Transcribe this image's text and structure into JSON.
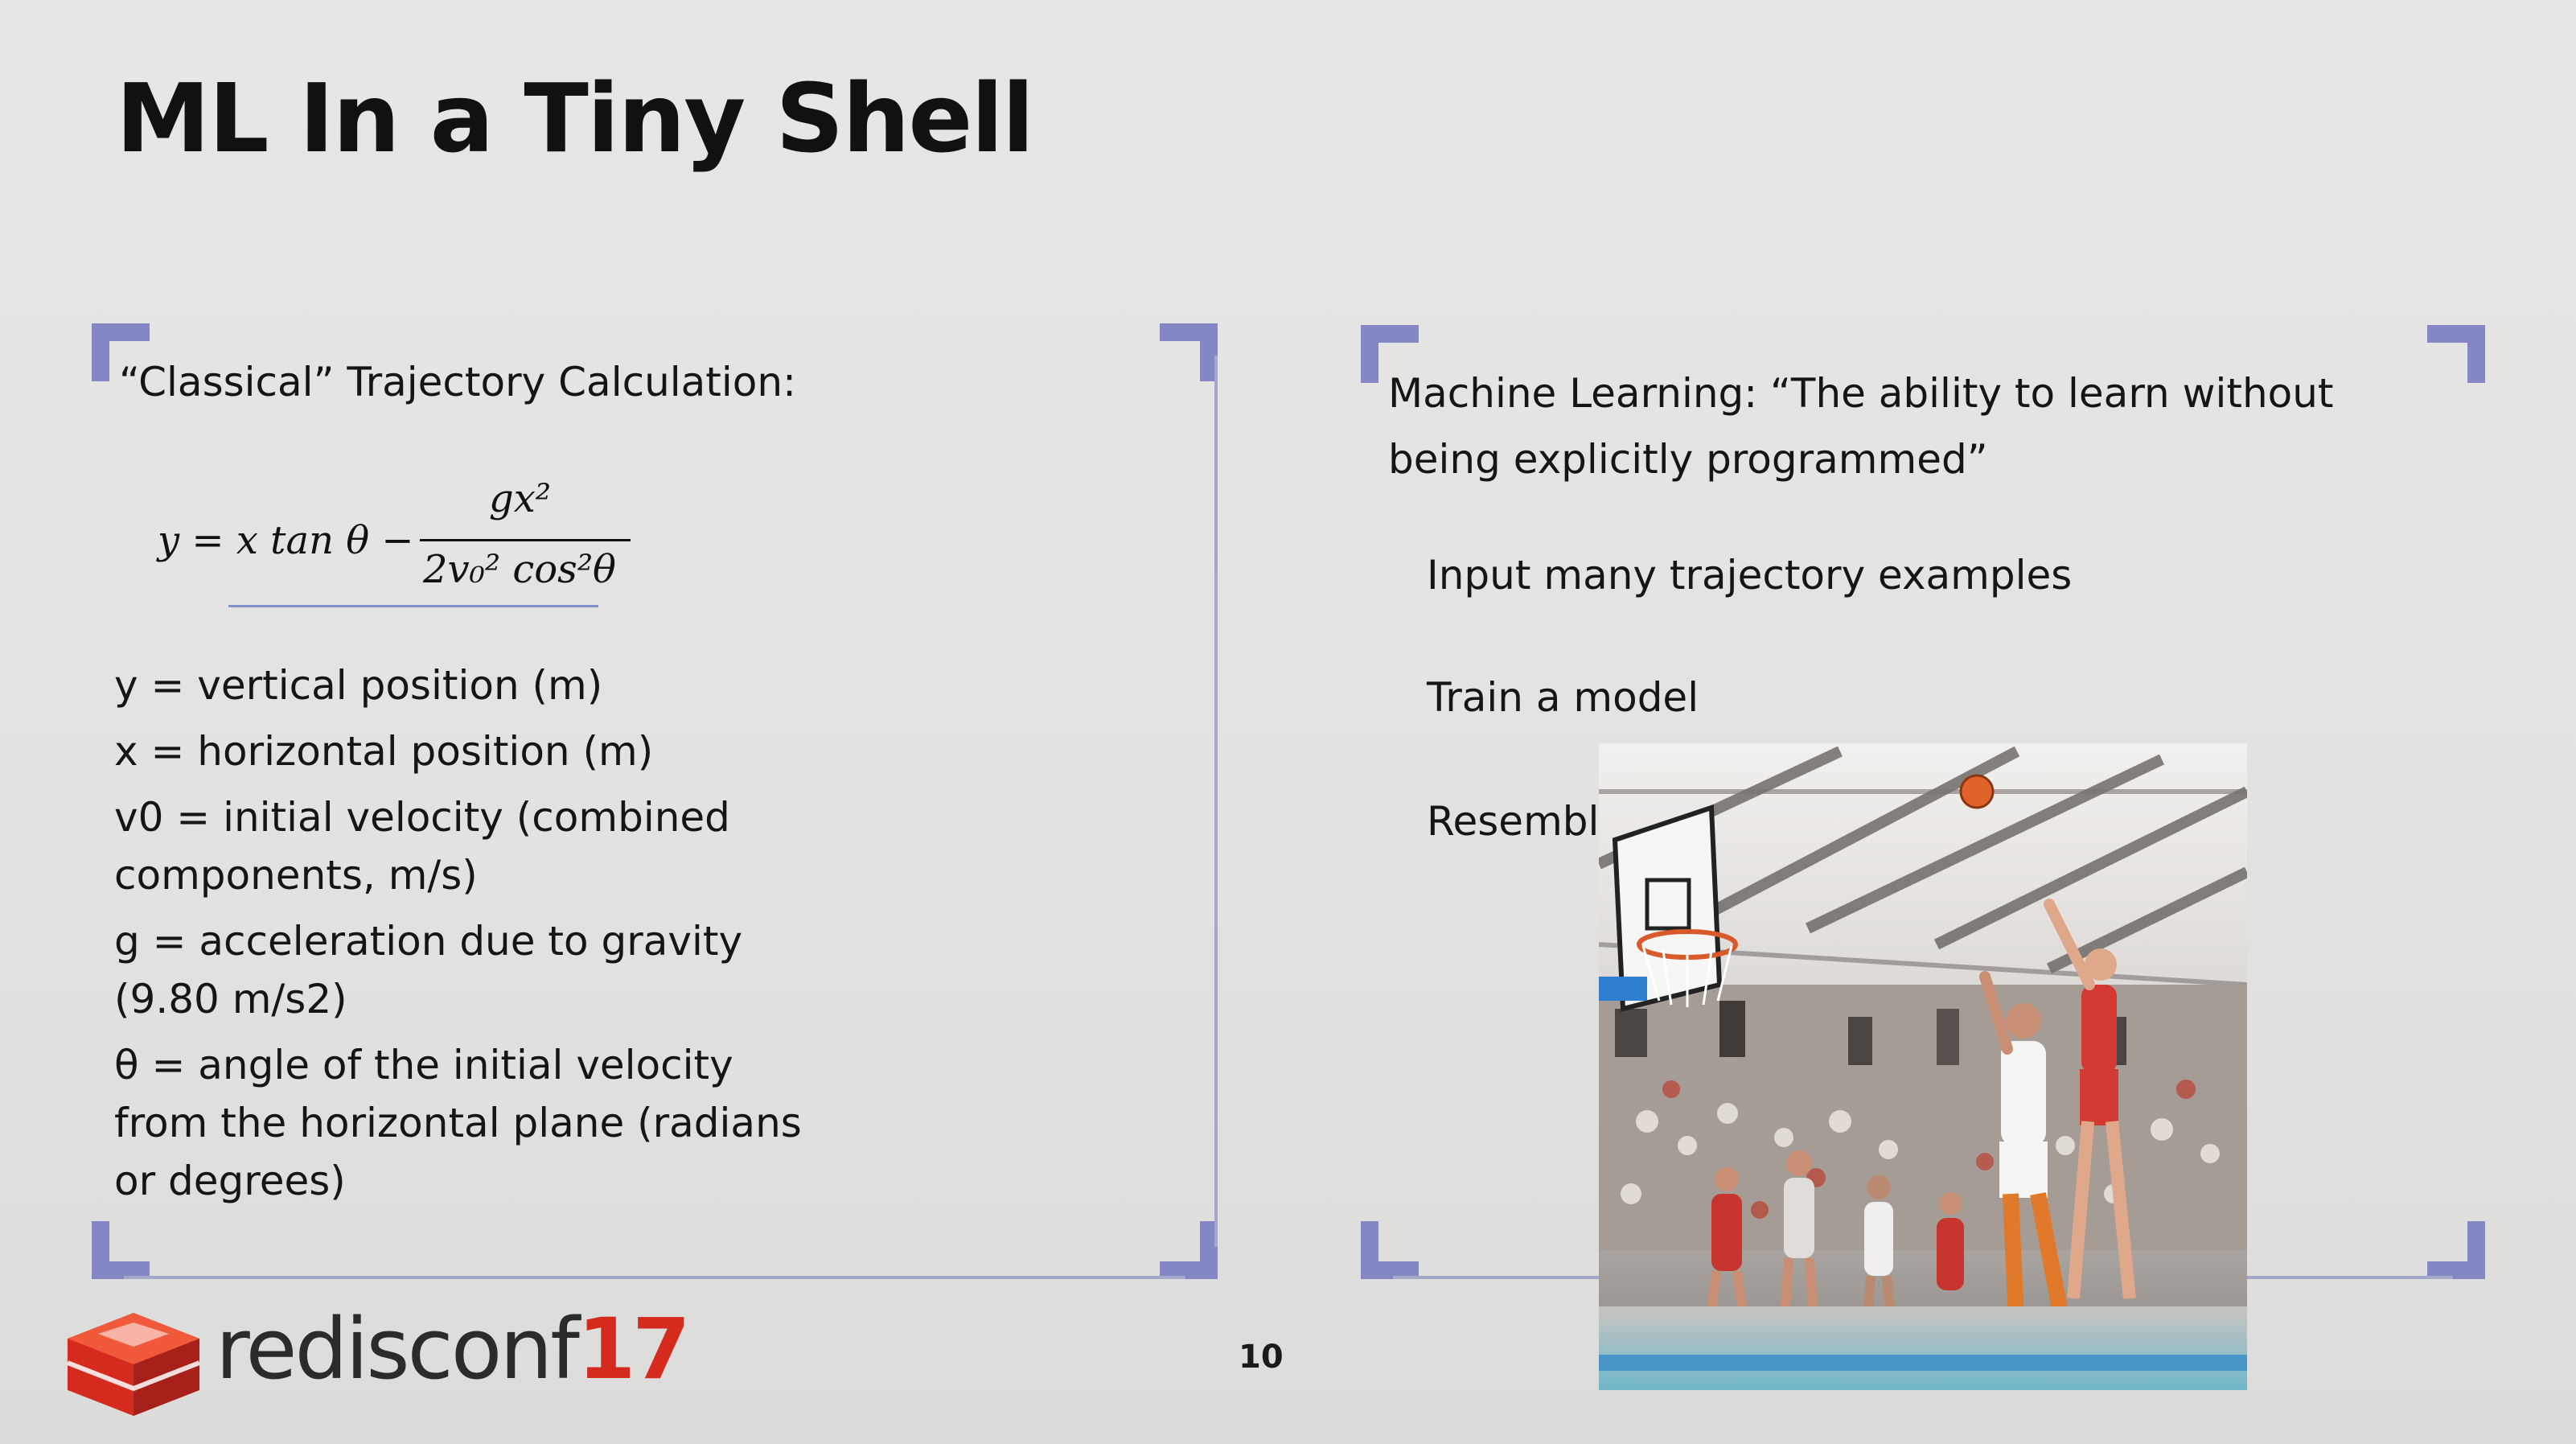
{
  "slide": {
    "title": "ML In a Tiny Shell",
    "page_number": "10"
  },
  "left_panel": {
    "heading": "“Classical” Trajectory Calculation:",
    "formula": {
      "lhs": "y = x tan θ −",
      "numerator": "gx²",
      "denominator": "2v₀² cos²θ"
    },
    "definitions": [
      "y = vertical position (m)",
      "x = horizontal position (m)",
      "v0 = initial velocity (combined components, m/s)",
      "g = acceleration due to gravity (9.80 m/s2)",
      "θ = angle of the initial velocity from the horizontal plane (radians or degrees)"
    ]
  },
  "right_panel": {
    "heading": "Machine Learning: “The ability to learn without being explicitly programmed”",
    "bullets": [
      "Input many trajectory examples",
      "Train a model",
      "Resembl"
    ]
  },
  "footer": {
    "logo_word": "redisconf",
    "logo_year": "17"
  },
  "colors": {
    "frame_accent": "#8587c4",
    "logo_red": "#d52b1e",
    "background": "#e4e4e2"
  }
}
